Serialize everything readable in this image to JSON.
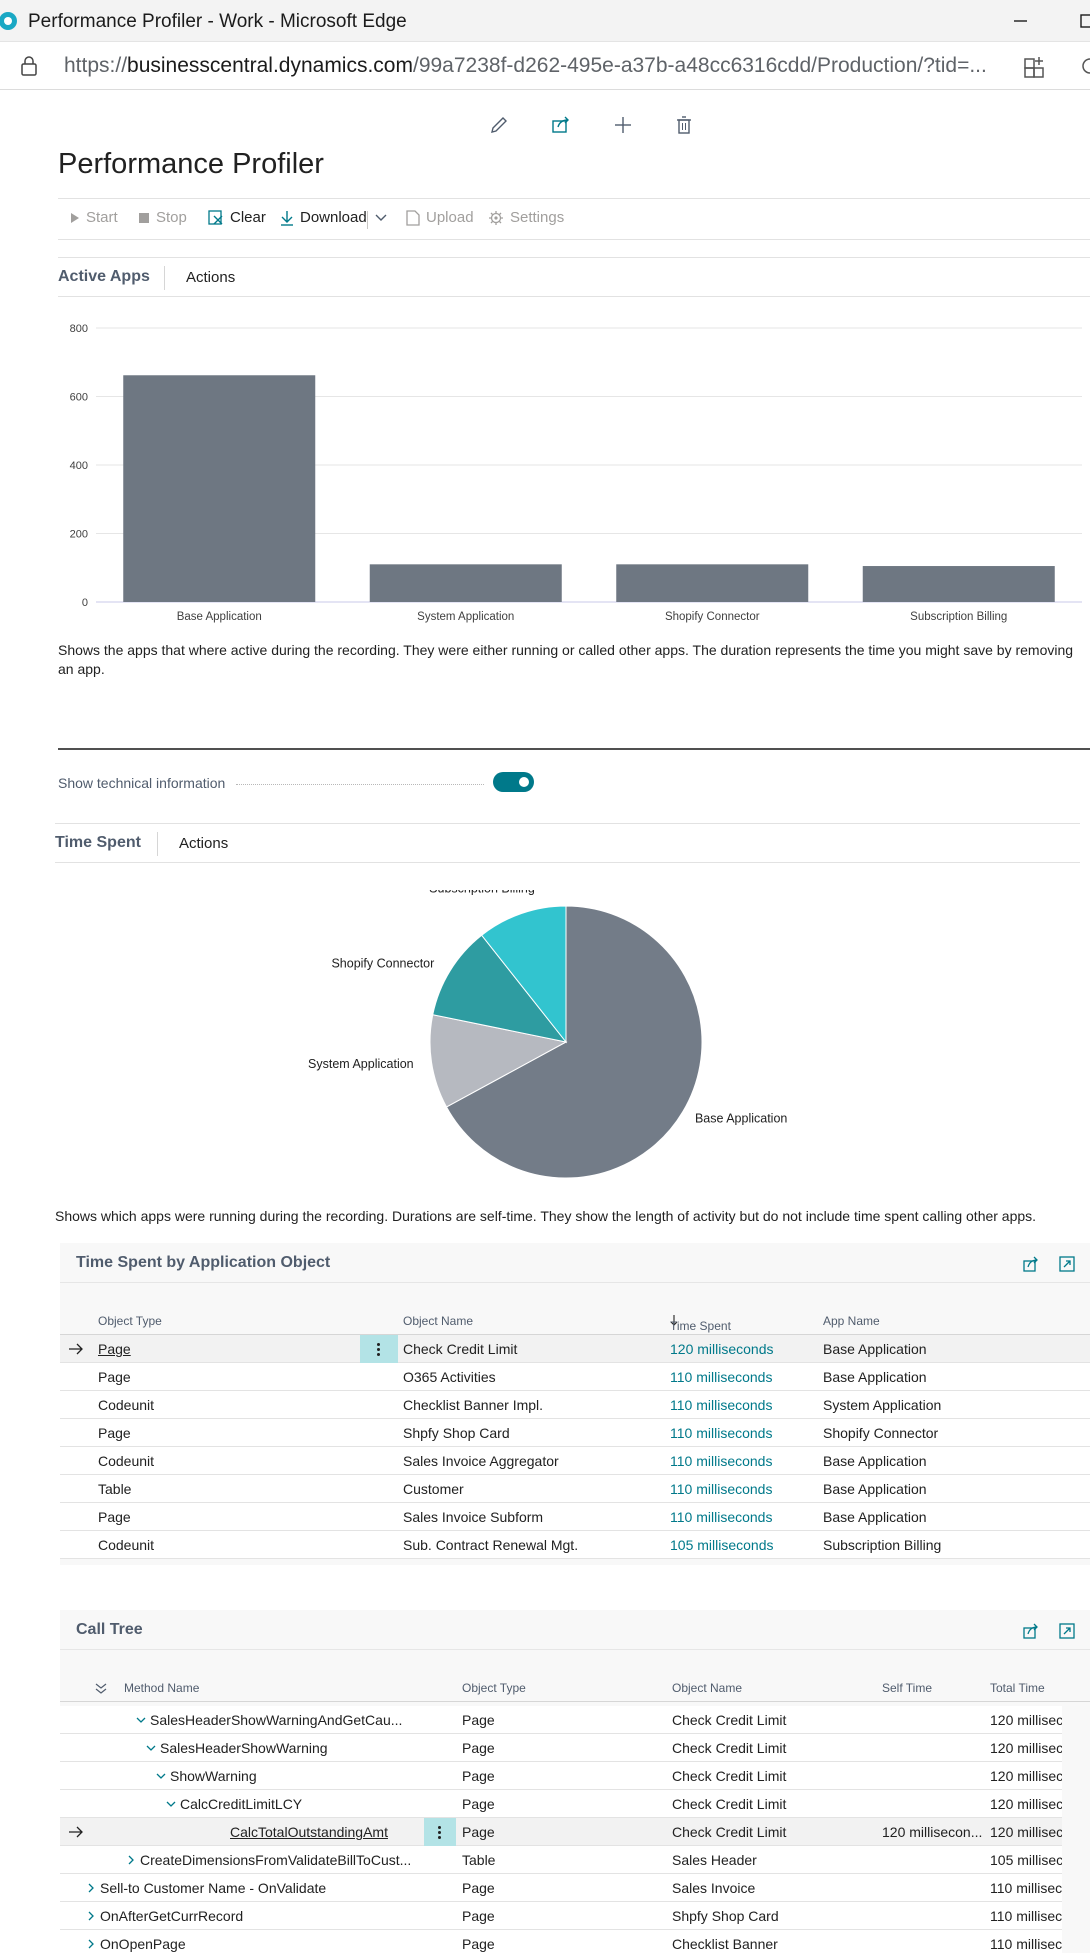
{
  "browser": {
    "window_title": "Performance Profiler - Work - Microsoft Edge",
    "url_prefix": "https://",
    "url_domain": "businesscentral.dynamics.com",
    "url_path": "/99a7238f-d262-495e-a37b-a48cc6316cdd/Production/?tid=..."
  },
  "page": {
    "title": "Performance Profiler",
    "toolbar_icons": [
      "edit-icon",
      "share-icon",
      "new-icon",
      "delete-icon"
    ],
    "actions": {
      "start": "Start",
      "stop": "Stop",
      "clear": "Clear",
      "download": "Download",
      "upload": "Upload",
      "settings": "Settings"
    }
  },
  "active_apps": {
    "title": "Active Apps",
    "actions_label": "Actions",
    "description": "Shows the apps that where active during the recording. They were either running or called other apps. The duration represents the time you might save by removing an app."
  },
  "technical": {
    "label": "Show technical information",
    "enabled": true
  },
  "time_spent": {
    "title": "Time Spent",
    "actions_label": "Actions",
    "description": "Shows which apps were running during the recording. Durations are self-time. They show the length of activity but do not include time spent calling other apps."
  },
  "chart_data": [
    {
      "type": "bar",
      "title": "Active Apps",
      "categories": [
        "Base Application",
        "System Application",
        "Shopify Connector",
        "Subscription Billing"
      ],
      "values": [
        662,
        110,
        110,
        105
      ],
      "ylim": [
        0,
        800
      ],
      "yticks": [
        0,
        200,
        400,
        600,
        800
      ],
      "color": "#6e7782"
    },
    {
      "type": "pie",
      "title": "Time Spent",
      "categories": [
        "Base Application",
        "System Application",
        "Shopify Connector",
        "Subscription Billing"
      ],
      "values": [
        662,
        110,
        110,
        105
      ],
      "colors": [
        "#737c88",
        "#b6b9c0",
        "#2e9ca1",
        "#32c4cf"
      ]
    }
  ],
  "objects_list": {
    "title": "Time Spent by Application Object",
    "columns": [
      "Object Type",
      "Object Name",
      "Time Spent",
      "App Name"
    ],
    "rows": [
      {
        "type": "Page",
        "name": "Check Credit Limit",
        "time": "120 milliseconds",
        "app": "Base Application"
      },
      {
        "type": "Page",
        "name": "O365 Activities",
        "time": "110 milliseconds",
        "app": "Base Application"
      },
      {
        "type": "Codeunit",
        "name": "Checklist Banner Impl.",
        "time": "110 milliseconds",
        "app": "System Application"
      },
      {
        "type": "Page",
        "name": "Shpfy Shop Card",
        "time": "110 milliseconds",
        "app": "Shopify Connector"
      },
      {
        "type": "Codeunit",
        "name": "Sales Invoice Aggregator",
        "time": "110 milliseconds",
        "app": "Base Application"
      },
      {
        "type": "Table",
        "name": "Customer",
        "time": "110 milliseconds",
        "app": "Base Application"
      },
      {
        "type": "Page",
        "name": "Sales Invoice Subform",
        "time": "110 milliseconds",
        "app": "Base Application"
      },
      {
        "type": "Codeunit",
        "name": "Sub. Contract Renewal Mgt.",
        "time": "105 milliseconds",
        "app": "Subscription Billing"
      }
    ]
  },
  "call_tree": {
    "title": "Call Tree",
    "columns": [
      "Method Name",
      "Object Type",
      "Object Name",
      "Self Time",
      "Total Time"
    ],
    "rows": [
      {
        "method": "SalesHeaderShowWarningAndGetCau...",
        "type": "Page",
        "object": "Check Credit Limit",
        "self": "",
        "total": "120 millisec"
      },
      {
        "method": "SalesHeaderShowWarning",
        "type": "Page",
        "object": "Check Credit Limit",
        "self": "",
        "total": "120 millisec"
      },
      {
        "method": "ShowWarning",
        "type": "Page",
        "object": "Check Credit Limit",
        "self": "",
        "total": "120 millisec"
      },
      {
        "method": "CalcCreditLimitLCY",
        "type": "Page",
        "object": "Check Credit Limit",
        "self": "",
        "total": "120 millisec"
      },
      {
        "method": "CalcTotalOutstandingAmt",
        "type": "Page",
        "object": "Check Credit Limit",
        "self": "120 millisecon...",
        "total": "120 millisec"
      },
      {
        "method": "CreateDimensionsFromValidateBillToCust...",
        "type": "Table",
        "object": "Sales Header",
        "self": "",
        "total": "105 millisec"
      },
      {
        "method": "Sell-to Customer Name - OnValidate",
        "type": "Page",
        "object": "Sales Invoice",
        "self": "",
        "total": "110 millisec"
      },
      {
        "method": "OnAfterGetCurrRecord",
        "type": "Page",
        "object": "Shpfy Shop Card",
        "self": "",
        "total": "110 millisec"
      },
      {
        "method": "OnOpenPage",
        "type": "Page",
        "object": "Checklist Banner",
        "self": "",
        "total": "110 millisec"
      }
    ]
  }
}
